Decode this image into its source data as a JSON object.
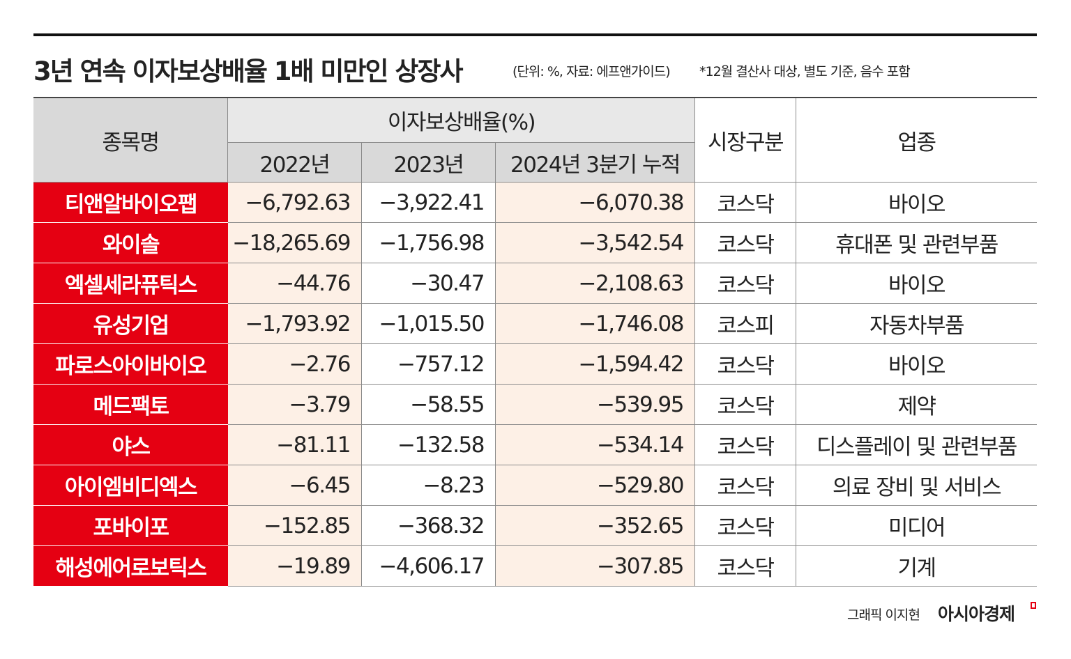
{
  "title": "3년 연속 이자보상배율 1배 미만인 상장사",
  "unit_note": "(단위: %, 자료: 에프앤가이드)",
  "note": "*12월 결산사 대상, 별도 기준, 음수 포함",
  "table": {
    "header": {
      "name": "종목명",
      "ratio": "이자보상배율(%)",
      "years": [
        "2022년",
        "2023년",
        "2024년 3분기 누적"
      ],
      "market": "시장구분",
      "industry": "업종"
    },
    "rows": [
      [
        "티앤알바이오팹",
        "−6,792.63",
        "−3,922.41",
        "−6,070.38",
        "코스닥",
        "바이오"
      ],
      [
        "와이솔",
        "−18,265.69",
        "−1,756.98",
        "−3,542.54",
        "코스닥",
        "휴대폰 및 관련부품"
      ],
      [
        "엑셀세라퓨틱스",
        "−44.76",
        "−30.47",
        "−2,108.63",
        "코스닥",
        "바이오"
      ],
      [
        "유성기업",
        "−1,793.92",
        "−1,015.50",
        "−1,746.08",
        "코스피",
        "자동차부품"
      ],
      [
        "파로스아이바이오",
        "−2.76",
        "−757.12",
        "−1,594.42",
        "코스닥",
        "바이오"
      ],
      [
        "메드팩토",
        "−3.79",
        "−58.55",
        "−539.95",
        "코스닥",
        "제약"
      ],
      [
        "야스",
        "−81.11",
        "−132.58",
        "−534.14",
        "코스닥",
        "디스플레이 및 관련부품"
      ],
      [
        "아이엠비디엑스",
        "−6.45",
        "−8.23",
        "−529.80",
        "코스닥",
        "의료 장비 및 서비스"
      ],
      [
        "포바이포",
        "−152.85",
        "−368.32",
        "−352.65",
        "코스닥",
        "미디어"
      ],
      [
        "해성에어로보틱스",
        "−19.89",
        "−4,606.17",
        "−307.85",
        "코스닥",
        "기계"
      ]
    ]
  },
  "credit": {
    "graphic": "그래픽 이지현",
    "brand": "아시아경제"
  }
}
